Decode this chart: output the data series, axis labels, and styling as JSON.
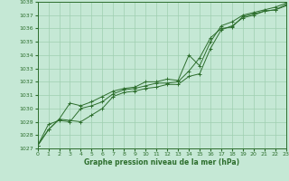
{
  "xlabel": "Graphe pression niveau de la mer (hPa)",
  "ylim": [
    1027,
    1038
  ],
  "xlim": [
    0,
    23
  ],
  "yticks": [
    1027,
    1028,
    1029,
    1030,
    1031,
    1032,
    1033,
    1034,
    1035,
    1036,
    1037,
    1038
  ],
  "xticks": [
    0,
    1,
    2,
    3,
    4,
    5,
    6,
    7,
    8,
    9,
    10,
    11,
    12,
    13,
    14,
    15,
    16,
    17,
    18,
    19,
    20,
    21,
    22,
    23
  ],
  "bg_color": "#c5e8d5",
  "grid_color": "#9fcfb0",
  "line_color": "#2d6e2d",
  "series1": [
    1027.2,
    1028.8,
    1029.1,
    1029.0,
    1030.0,
    1030.2,
    1030.5,
    1031.1,
    1031.4,
    1031.5,
    1031.7,
    1031.9,
    1031.9,
    1032.0,
    1032.8,
    1033.8,
    1035.3,
    1036.0,
    1036.1,
    1036.9,
    1037.1,
    1037.3,
    1037.4,
    1037.8
  ],
  "series2": [
    1027.2,
    1028.4,
    1029.2,
    1029.1,
    1029.0,
    1029.5,
    1030.0,
    1030.9,
    1031.2,
    1031.3,
    1031.5,
    1031.6,
    1031.8,
    1031.8,
    1032.4,
    1032.6,
    1034.5,
    1035.9,
    1036.2,
    1036.8,
    1037.0,
    1037.3,
    1037.4,
    1037.7
  ],
  "series3": [
    1027.2,
    1028.4,
    1029.2,
    1030.4,
    1030.2,
    1030.5,
    1030.9,
    1031.3,
    1031.5,
    1031.6,
    1032.0,
    1032.0,
    1032.2,
    1032.1,
    1034.0,
    1033.2,
    1035.0,
    1036.2,
    1036.5,
    1037.0,
    1037.2,
    1037.4,
    1037.6,
    1037.9
  ]
}
